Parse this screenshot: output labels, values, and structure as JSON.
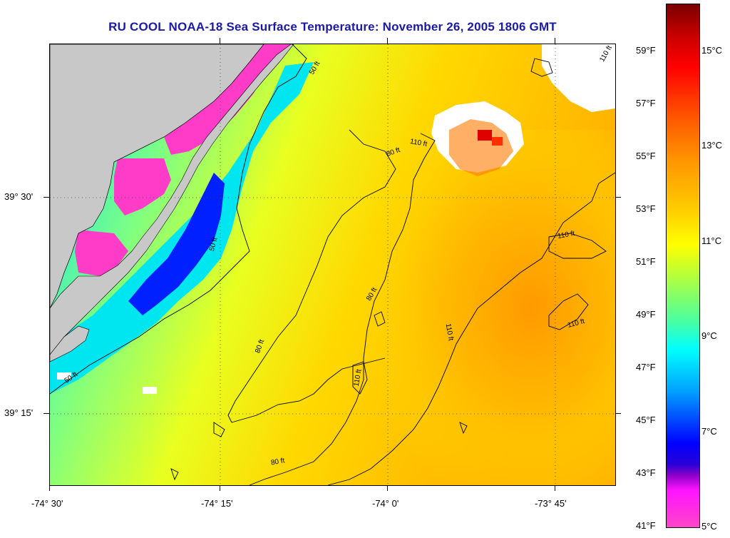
{
  "title": "RU COOL  NOAA-18  Sea Surface Temperature:  November 26, 2005 1806 GMT",
  "lat_labels": [
    "39° 30'",
    "39° 15'"
  ],
  "lon_labels": [
    "-74° 30'",
    "-74° 15'",
    "-74° 0'",
    "-73° 45'"
  ],
  "fahrenheit_labels": [
    "59°F",
    "57°F",
    "55°F",
    "53°F",
    "51°F",
    "49°F",
    "47°F",
    "45°F",
    "43°F",
    "41°F"
  ],
  "celsius_labels": [
    "15°C",
    "13°C",
    "11°C",
    "9°C",
    "7°C",
    "5°C"
  ],
  "contour_labels": {
    "c1": "50 ft",
    "c2": "80 ft",
    "c3": "110 ft",
    "c4": "110 ft",
    "c5": "110 ft",
    "c6": "110 ft",
    "c7": "80 ft",
    "c8": "110 ft",
    "c9": "80 ft",
    "c10": "50 ft",
    "c11": "80 ft",
    "c12": "110 ft",
    "c13": "50 ft"
  },
  "colors": {
    "land": "#c8c8c8",
    "title": "#1a1aa6",
    "contour": "#000000",
    "cloud": "#ffffff"
  }
}
